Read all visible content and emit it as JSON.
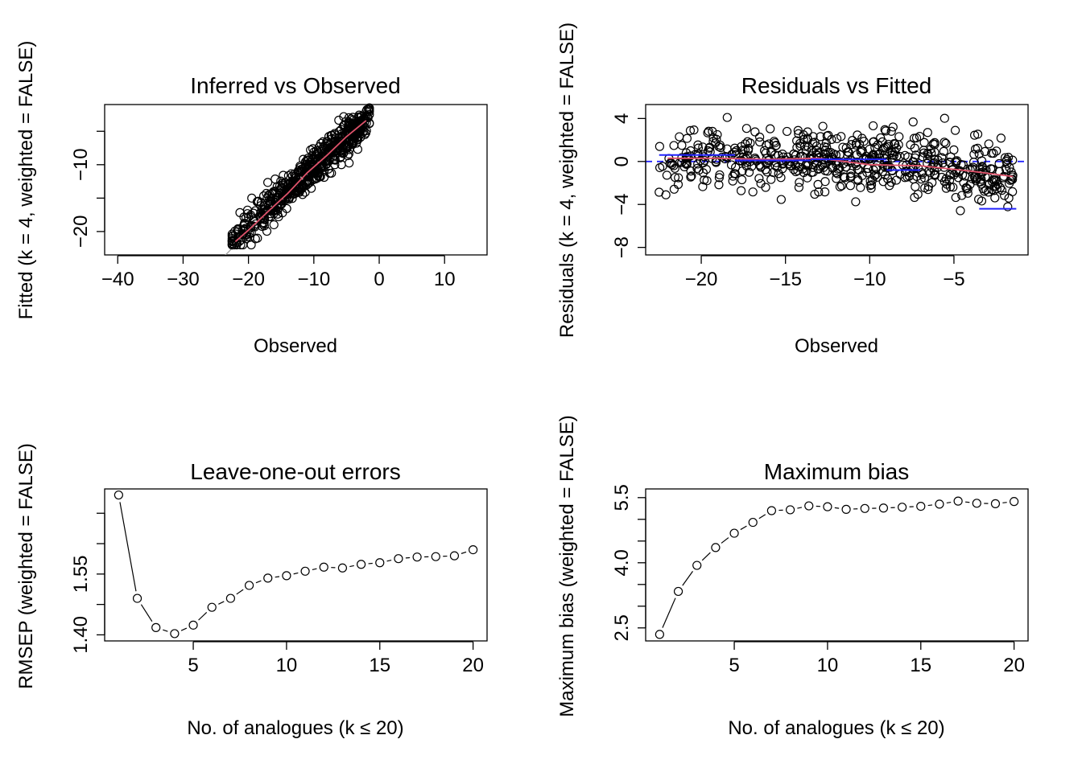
{
  "chart_data": [
    {
      "type": "scatter",
      "title": "Inferred vs Observed",
      "xlabel": "Observed",
      "ylabel": "Fitted (k = 4, weighted = FALSE)",
      "xlim": [
        -42,
        16.5
      ],
      "ylim": [
        -23.5,
        -1
      ],
      "xticks": [
        -40,
        -30,
        -20,
        -10,
        0,
        10
      ],
      "yticks": [
        -20,
        -10
      ],
      "ytick_labels_extra": "unlabelled tick at -15, -5",
      "reference_line": "1:1 line (grey)",
      "smoother": "lowess (red)",
      "n_points": 600,
      "point_cloud": {
        "x_range": [
          -22.5,
          -1.5
        ],
        "y_range": [
          -22,
          -1.5
        ],
        "relation": "strong positive linear, slope < 1 at extremes"
      },
      "smooth_line": {
        "x": [
          -22,
          -20,
          -17,
          -14,
          -11,
          -8,
          -5,
          -2
        ],
        "y": [
          -21.5,
          -19.8,
          -17,
          -14.3,
          -11.2,
          -8.6,
          -5.8,
          -3.4
        ]
      }
    },
    {
      "type": "scatter",
      "title": "Residuals vs Fitted",
      "xlabel": "Observed",
      "ylabel": "Residuals (k = 4, weighted = FALSE)",
      "xlim": [
        -23.3,
        -0.6
      ],
      "ylim": [
        -8.7,
        5.3
      ],
      "xticks": [
        -20,
        -15,
        -10,
        -5
      ],
      "yticks": [
        -8,
        -4,
        0,
        4
      ],
      "zero_line": "dashed blue at 0",
      "smoother": "lowess (red)",
      "n_points": 600,
      "smooth_line": {
        "x": [
          -22,
          -19,
          -16,
          -13,
          -10,
          -7,
          -4,
          -1.5
        ],
        "y": [
          0.3,
          0.3,
          0.2,
          0.3,
          -0.3,
          -0.4,
          -0.9,
          -1.4
        ]
      },
      "bias_segments": [
        {
          "x0": -22.5,
          "x1": -18,
          "y": 0.6
        },
        {
          "x0": -18,
          "x1": -13.5,
          "y": 0.1
        },
        {
          "x0": -13.5,
          "x1": -9,
          "y": 0.2
        },
        {
          "x0": -9,
          "x1": -7,
          "y": -0.8
        },
        {
          "x0": -3.5,
          "x1": -1.3,
          "y": -4.4
        }
      ]
    },
    {
      "type": "line",
      "title": "Leave-one-out errors",
      "xlabel": "No. of analogues (k ≤ 20)",
      "ylabel": "RMSEP (weighted = FALSE)",
      "xlim": [
        0.25,
        20.75
      ],
      "ylim": [
        1.385,
        1.76
      ],
      "xticks": [
        5,
        10,
        15,
        20
      ],
      "yticks": [
        1.4,
        1.55
      ],
      "minor_yticks": [
        1.4,
        1.475,
        1.55,
        1.625,
        1.7
      ],
      "x": [
        1,
        2,
        3,
        4,
        5,
        6,
        7,
        8,
        9,
        10,
        11,
        12,
        13,
        14,
        15,
        16,
        17,
        18,
        19,
        20
      ],
      "values": [
        1.745,
        1.49,
        1.418,
        1.403,
        1.424,
        1.468,
        1.49,
        1.522,
        1.54,
        1.546,
        1.557,
        1.567,
        1.565,
        1.574,
        1.578,
        1.588,
        1.592,
        1.593,
        1.595,
        1.61
      ]
    },
    {
      "type": "line",
      "title": "Maximum bias",
      "xlabel": "No. of analogues (k ≤ 20)",
      "ylabel": "Maximum bias (weighted = FALSE)",
      "xlim": [
        0.25,
        20.75
      ],
      "ylim": [
        2.2,
        5.7
      ],
      "xticks": [
        5,
        10,
        15,
        20
      ],
      "yticks": [
        2.5,
        4.0,
        5.5
      ],
      "minor_yticks": [
        2.5,
        3.0,
        3.5,
        4.0,
        4.5,
        5.0,
        5.5
      ],
      "x": [
        1,
        2,
        3,
        4,
        5,
        6,
        7,
        8,
        9,
        10,
        11,
        12,
        13,
        14,
        15,
        16,
        17,
        18,
        19,
        20
      ],
      "values": [
        2.35,
        3.34,
        3.94,
        4.35,
        4.68,
        4.93,
        5.2,
        5.22,
        5.31,
        5.29,
        5.23,
        5.25,
        5.26,
        5.28,
        5.3,
        5.35,
        5.42,
        5.37,
        5.36,
        5.41
      ]
    }
  ],
  "colors": {
    "points": "#000000",
    "smooth": "#DF536B",
    "reference": "#9E9E9E",
    "zero_line": "#2323ff",
    "bias": "#2323ff"
  }
}
